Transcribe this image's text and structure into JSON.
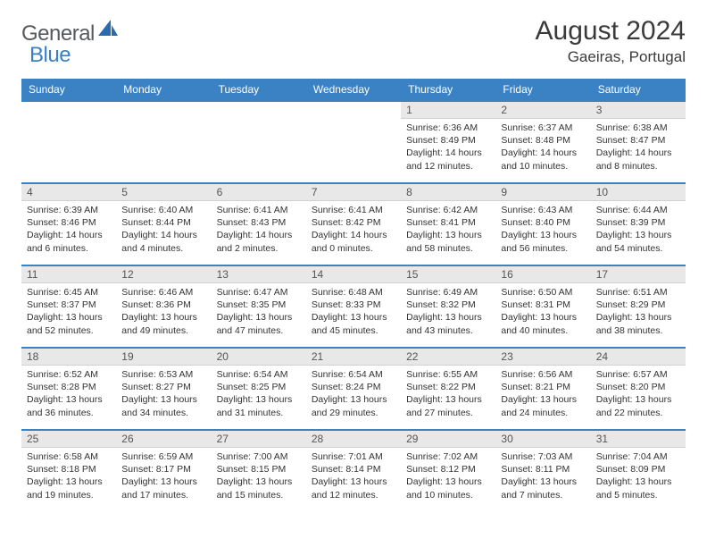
{
  "colors": {
    "header_blue": "#3b82c4",
    "logo_gray": "#555a5e",
    "logo_blue": "#3b7fc4",
    "day_number_bg": "#e8e8e8",
    "text": "#333333"
  },
  "logo": {
    "general": "General",
    "blue": "Blue"
  },
  "title": "August 2024",
  "location": "Gaeiras, Portugal",
  "weekdays": [
    "Sunday",
    "Monday",
    "Tuesday",
    "Wednesday",
    "Thursday",
    "Friday",
    "Saturday"
  ],
  "weeks": [
    [
      {
        "n": "",
        "sr": "",
        "ss": "",
        "dl1": "",
        "dl2": ""
      },
      {
        "n": "",
        "sr": "",
        "ss": "",
        "dl1": "",
        "dl2": ""
      },
      {
        "n": "",
        "sr": "",
        "ss": "",
        "dl1": "",
        "dl2": ""
      },
      {
        "n": "",
        "sr": "",
        "ss": "",
        "dl1": "",
        "dl2": ""
      },
      {
        "n": "1",
        "sr": "Sunrise: 6:36 AM",
        "ss": "Sunset: 8:49 PM",
        "dl1": "Daylight: 14 hours",
        "dl2": "and 12 minutes."
      },
      {
        "n": "2",
        "sr": "Sunrise: 6:37 AM",
        "ss": "Sunset: 8:48 PM",
        "dl1": "Daylight: 14 hours",
        "dl2": "and 10 minutes."
      },
      {
        "n": "3",
        "sr": "Sunrise: 6:38 AM",
        "ss": "Sunset: 8:47 PM",
        "dl1": "Daylight: 14 hours",
        "dl2": "and 8 minutes."
      }
    ],
    [
      {
        "n": "4",
        "sr": "Sunrise: 6:39 AM",
        "ss": "Sunset: 8:46 PM",
        "dl1": "Daylight: 14 hours",
        "dl2": "and 6 minutes."
      },
      {
        "n": "5",
        "sr": "Sunrise: 6:40 AM",
        "ss": "Sunset: 8:44 PM",
        "dl1": "Daylight: 14 hours",
        "dl2": "and 4 minutes."
      },
      {
        "n": "6",
        "sr": "Sunrise: 6:41 AM",
        "ss": "Sunset: 8:43 PM",
        "dl1": "Daylight: 14 hours",
        "dl2": "and 2 minutes."
      },
      {
        "n": "7",
        "sr": "Sunrise: 6:41 AM",
        "ss": "Sunset: 8:42 PM",
        "dl1": "Daylight: 14 hours",
        "dl2": "and 0 minutes."
      },
      {
        "n": "8",
        "sr": "Sunrise: 6:42 AM",
        "ss": "Sunset: 8:41 PM",
        "dl1": "Daylight: 13 hours",
        "dl2": "and 58 minutes."
      },
      {
        "n": "9",
        "sr": "Sunrise: 6:43 AM",
        "ss": "Sunset: 8:40 PM",
        "dl1": "Daylight: 13 hours",
        "dl2": "and 56 minutes."
      },
      {
        "n": "10",
        "sr": "Sunrise: 6:44 AM",
        "ss": "Sunset: 8:39 PM",
        "dl1": "Daylight: 13 hours",
        "dl2": "and 54 minutes."
      }
    ],
    [
      {
        "n": "11",
        "sr": "Sunrise: 6:45 AM",
        "ss": "Sunset: 8:37 PM",
        "dl1": "Daylight: 13 hours",
        "dl2": "and 52 minutes."
      },
      {
        "n": "12",
        "sr": "Sunrise: 6:46 AM",
        "ss": "Sunset: 8:36 PM",
        "dl1": "Daylight: 13 hours",
        "dl2": "and 49 minutes."
      },
      {
        "n": "13",
        "sr": "Sunrise: 6:47 AM",
        "ss": "Sunset: 8:35 PM",
        "dl1": "Daylight: 13 hours",
        "dl2": "and 47 minutes."
      },
      {
        "n": "14",
        "sr": "Sunrise: 6:48 AM",
        "ss": "Sunset: 8:33 PM",
        "dl1": "Daylight: 13 hours",
        "dl2": "and 45 minutes."
      },
      {
        "n": "15",
        "sr": "Sunrise: 6:49 AM",
        "ss": "Sunset: 8:32 PM",
        "dl1": "Daylight: 13 hours",
        "dl2": "and 43 minutes."
      },
      {
        "n": "16",
        "sr": "Sunrise: 6:50 AM",
        "ss": "Sunset: 8:31 PM",
        "dl1": "Daylight: 13 hours",
        "dl2": "and 40 minutes."
      },
      {
        "n": "17",
        "sr": "Sunrise: 6:51 AM",
        "ss": "Sunset: 8:29 PM",
        "dl1": "Daylight: 13 hours",
        "dl2": "and 38 minutes."
      }
    ],
    [
      {
        "n": "18",
        "sr": "Sunrise: 6:52 AM",
        "ss": "Sunset: 8:28 PM",
        "dl1": "Daylight: 13 hours",
        "dl2": "and 36 minutes."
      },
      {
        "n": "19",
        "sr": "Sunrise: 6:53 AM",
        "ss": "Sunset: 8:27 PM",
        "dl1": "Daylight: 13 hours",
        "dl2": "and 34 minutes."
      },
      {
        "n": "20",
        "sr": "Sunrise: 6:54 AM",
        "ss": "Sunset: 8:25 PM",
        "dl1": "Daylight: 13 hours",
        "dl2": "and 31 minutes."
      },
      {
        "n": "21",
        "sr": "Sunrise: 6:54 AM",
        "ss": "Sunset: 8:24 PM",
        "dl1": "Daylight: 13 hours",
        "dl2": "and 29 minutes."
      },
      {
        "n": "22",
        "sr": "Sunrise: 6:55 AM",
        "ss": "Sunset: 8:22 PM",
        "dl1": "Daylight: 13 hours",
        "dl2": "and 27 minutes."
      },
      {
        "n": "23",
        "sr": "Sunrise: 6:56 AM",
        "ss": "Sunset: 8:21 PM",
        "dl1": "Daylight: 13 hours",
        "dl2": "and 24 minutes."
      },
      {
        "n": "24",
        "sr": "Sunrise: 6:57 AM",
        "ss": "Sunset: 8:20 PM",
        "dl1": "Daylight: 13 hours",
        "dl2": "and 22 minutes."
      }
    ],
    [
      {
        "n": "25",
        "sr": "Sunrise: 6:58 AM",
        "ss": "Sunset: 8:18 PM",
        "dl1": "Daylight: 13 hours",
        "dl2": "and 19 minutes."
      },
      {
        "n": "26",
        "sr": "Sunrise: 6:59 AM",
        "ss": "Sunset: 8:17 PM",
        "dl1": "Daylight: 13 hours",
        "dl2": "and 17 minutes."
      },
      {
        "n": "27",
        "sr": "Sunrise: 7:00 AM",
        "ss": "Sunset: 8:15 PM",
        "dl1": "Daylight: 13 hours",
        "dl2": "and 15 minutes."
      },
      {
        "n": "28",
        "sr": "Sunrise: 7:01 AM",
        "ss": "Sunset: 8:14 PM",
        "dl1": "Daylight: 13 hours",
        "dl2": "and 12 minutes."
      },
      {
        "n": "29",
        "sr": "Sunrise: 7:02 AM",
        "ss": "Sunset: 8:12 PM",
        "dl1": "Daylight: 13 hours",
        "dl2": "and 10 minutes."
      },
      {
        "n": "30",
        "sr": "Sunrise: 7:03 AM",
        "ss": "Sunset: 8:11 PM",
        "dl1": "Daylight: 13 hours",
        "dl2": "and 7 minutes."
      },
      {
        "n": "31",
        "sr": "Sunrise: 7:04 AM",
        "ss": "Sunset: 8:09 PM",
        "dl1": "Daylight: 13 hours",
        "dl2": "and 5 minutes."
      }
    ]
  ]
}
